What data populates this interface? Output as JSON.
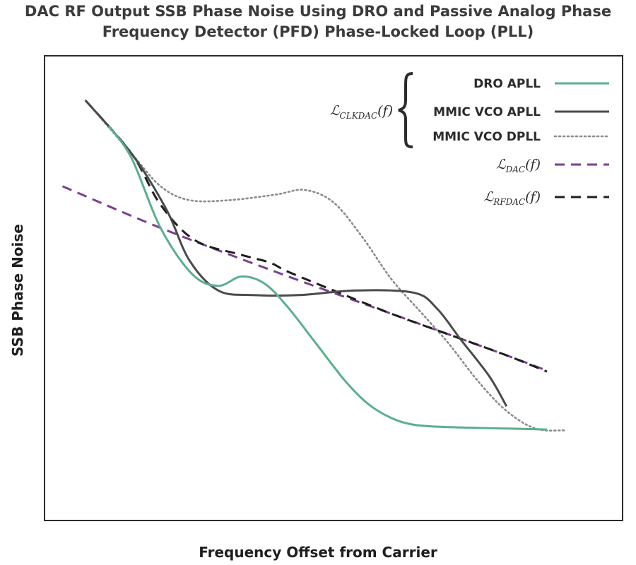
{
  "chart_data": {
    "type": "line",
    "title": "DAC RF Output SSB Phase Noise Using DRO and Passive Analog Phase Frequency Detector (PFD) Phase-Locked Loop (PLL)",
    "title_lines": [
      "DAC RF Output SSB Phase Noise Using DRO and Passive Analog Phase",
      "Frequency Detector (PFD) Phase-Locked Loop (PLL)"
    ],
    "xlabel": "Frequency Offset from Carrier",
    "ylabel": "SSB Phase Noise",
    "grid": false,
    "legend_position": "top-right",
    "legend_brace_label": {
      "base": "ℒ",
      "sub": "CLKDAC",
      "arg": "(f)"
    },
    "series": [
      {
        "name": "DRO APLL",
        "color": "#5aaf8c",
        "style": "solid",
        "points": [
          [
            0.11,
            0.85
          ],
          [
            0.15,
            0.78
          ],
          [
            0.2,
            0.63
          ],
          [
            0.255,
            0.53
          ],
          [
            0.3,
            0.505
          ],
          [
            0.34,
            0.525
          ],
          [
            0.38,
            0.51
          ],
          [
            0.42,
            0.46
          ],
          [
            0.47,
            0.38
          ],
          [
            0.52,
            0.3
          ],
          [
            0.56,
            0.25
          ],
          [
            0.6,
            0.22
          ],
          [
            0.64,
            0.205
          ],
          [
            0.7,
            0.2
          ],
          [
            0.8,
            0.197
          ],
          [
            0.87,
            0.195
          ]
        ]
      },
      {
        "name": "MMIC VCO APLL",
        "color": "#4a4a4e",
        "style": "solid",
        "points": [
          [
            0.07,
            0.905
          ],
          [
            0.15,
            0.79
          ],
          [
            0.21,
            0.67
          ],
          [
            0.25,
            0.56
          ],
          [
            0.3,
            0.495
          ],
          [
            0.36,
            0.485
          ],
          [
            0.44,
            0.485
          ],
          [
            0.54,
            0.495
          ],
          [
            0.64,
            0.49
          ],
          [
            0.68,
            0.455
          ],
          [
            0.72,
            0.39
          ],
          [
            0.77,
            0.31
          ],
          [
            0.8,
            0.245
          ]
        ]
      },
      {
        "name": "MMIC VCO DPLL",
        "color": "#8a8a8e",
        "style": "dotted",
        "points": [
          [
            0.07,
            0.905
          ],
          [
            0.15,
            0.79
          ],
          [
            0.2,
            0.72
          ],
          [
            0.25,
            0.69
          ],
          [
            0.32,
            0.69
          ],
          [
            0.4,
            0.702
          ],
          [
            0.45,
            0.712
          ],
          [
            0.5,
            0.685
          ],
          [
            0.55,
            0.61
          ],
          [
            0.6,
            0.52
          ],
          [
            0.65,
            0.45
          ],
          [
            0.7,
            0.38
          ],
          [
            0.75,
            0.3
          ],
          [
            0.8,
            0.235
          ],
          [
            0.85,
            0.197
          ],
          [
            0.9,
            0.193
          ]
        ]
      },
      {
        "name": "ℒDAC(f)",
        "label_base": "ℒ",
        "label_sub": "DAC",
        "label_arg": "(f)",
        "color": "#7b3f8f",
        "style": "dashed",
        "points": [
          [
            0.03,
            0.72
          ],
          [
            0.2,
            0.63
          ],
          [
            0.4,
            0.535
          ],
          [
            0.6,
            0.445
          ],
          [
            0.8,
            0.355
          ],
          [
            0.87,
            0.322
          ]
        ]
      },
      {
        "name": "ℒRFDAC(f)",
        "label_base": "ℒ",
        "label_sub": "RFDAC",
        "label_arg": "(f)",
        "color": "#1e1e1e",
        "style": "dashed",
        "points": [
          [
            0.07,
            0.905
          ],
          [
            0.15,
            0.79
          ],
          [
            0.2,
            0.68
          ],
          [
            0.26,
            0.603
          ],
          [
            0.34,
            0.572
          ],
          [
            0.39,
            0.555
          ],
          [
            0.42,
            0.536
          ],
          [
            0.5,
            0.495
          ],
          [
            0.6,
            0.445
          ],
          [
            0.7,
            0.4
          ],
          [
            0.8,
            0.355
          ],
          [
            0.87,
            0.32
          ]
        ]
      }
    ]
  }
}
